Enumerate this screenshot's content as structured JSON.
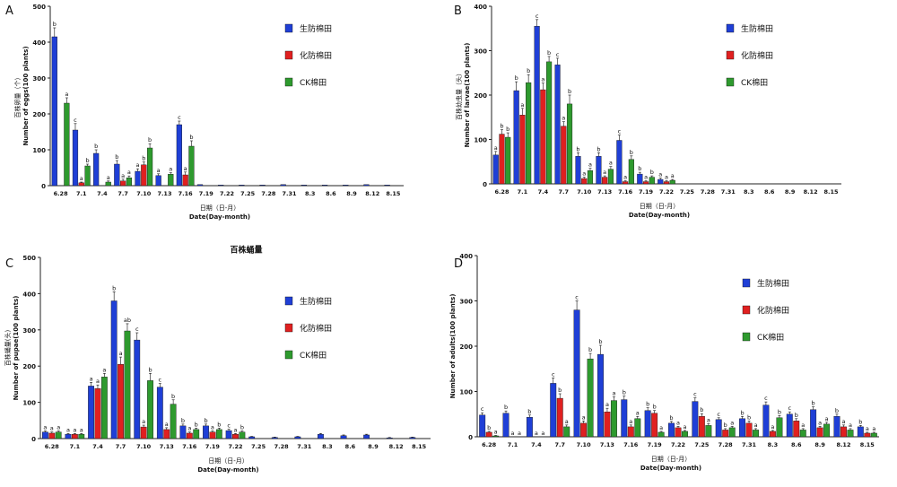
{
  "figure": {
    "legend_names": [
      "生防棉田",
      "化防棉田",
      "CK棉田"
    ],
    "colors": [
      "#1f3fd6",
      "#e02020",
      "#2e9a2e"
    ],
    "x_categories": [
      "6.28",
      "7.1",
      "7.4",
      "7.7",
      "7.10",
      "7.13",
      "7.16",
      "7.19",
      "7.22",
      "7.25",
      "7.28",
      "7.31",
      "8.3",
      "8.6",
      "8.9",
      "8.12",
      "8.15"
    ],
    "xlabel_cn": "日期（日-月）",
    "xlabel_en": "Date(Day-month)"
  },
  "chart_data": [
    {
      "panel": "A",
      "type": "bar",
      "title": "",
      "ylabel_cn": "百株卵量（个）",
      "ylabel_en": "Number of eggs(100 plants)",
      "ylim": [
        0,
        500
      ],
      "yticks": [
        0,
        100,
        200,
        300,
        400,
        500
      ],
      "categories": [
        "6.28",
        "7.1",
        "7.4",
        "7.7",
        "7.10",
        "7.13",
        "7.16",
        "7.19",
        "7.22",
        "7.25",
        "7.28",
        "7.31",
        "8.3",
        "8.6",
        "8.9",
        "8.12",
        "8.15"
      ],
      "series": [
        {
          "name": "生防棉田",
          "values": [
            415,
            155,
            90,
            60,
            40,
            28,
            170,
            3,
            2,
            2,
            2,
            3,
            2,
            2,
            2,
            3,
            2
          ],
          "errors": [
            25,
            18,
            10,
            10,
            7,
            5,
            10,
            0,
            0,
            0,
            0,
            0,
            0,
            0,
            0,
            0,
            0
          ],
          "letters": [
            "b",
            "c",
            "b",
            "b",
            "a",
            "a",
            "c",
            "",
            "",
            "",
            "",
            "",
            "",
            "",
            "",
            "",
            ""
          ]
        },
        {
          "name": "化防棉田",
          "values": [
            0,
            8,
            0,
            13,
            58,
            0,
            30,
            0,
            0,
            0,
            0,
            0,
            0,
            0,
            0,
            0,
            0
          ],
          "errors": [
            0,
            2,
            0,
            5,
            8,
            0,
            8,
            0,
            0,
            0,
            0,
            0,
            0,
            0,
            0,
            0,
            0
          ],
          "letters": [
            "",
            "a",
            "",
            "a",
            "b",
            "",
            "a",
            "",
            "",
            "",
            "",
            "",
            "",
            "",
            "",
            "",
            ""
          ]
        },
        {
          "name": "CK棉田",
          "values": [
            230,
            55,
            10,
            22,
            105,
            32,
            110,
            0,
            0,
            0,
            0,
            0,
            0,
            0,
            0,
            0,
            0
          ],
          "errors": [
            15,
            5,
            3,
            5,
            12,
            4,
            15,
            0,
            0,
            0,
            0,
            0,
            0,
            0,
            0,
            0,
            0
          ],
          "letters": [
            "a",
            "b",
            "a",
            "a",
            "b",
            "a",
            "b",
            "",
            "",
            "",
            "",
            "",
            "",
            "",
            "",
            "",
            ""
          ]
        }
      ]
    },
    {
      "panel": "B",
      "type": "bar",
      "title": "",
      "ylabel_cn": "百株幼虫量（头）",
      "ylabel_en": "Number of larvae(100 plants)",
      "ylim": [
        0,
        400
      ],
      "yticks": [
        0,
        100,
        200,
        300,
        400
      ],
      "categories": [
        "6.28",
        "7.1",
        "7.4",
        "7.7",
        "7.10",
        "7.13",
        "7.16",
        "7.19",
        "7.22",
        "7.25",
        "7.28",
        "7.31",
        "8.3",
        "8.6",
        "8.9",
        "8.12",
        "8.15"
      ],
      "series": [
        {
          "name": "生防棉田",
          "values": [
            65,
            210,
            355,
            268,
            62,
            62,
            98,
            22,
            10,
            0,
            0,
            0,
            0,
            0,
            0,
            0,
            0
          ],
          "errors": [
            8,
            20,
            15,
            15,
            8,
            8,
            12,
            4,
            3,
            0,
            0,
            0,
            0,
            0,
            0,
            0,
            0
          ],
          "letters": [
            "a",
            "b",
            "c",
            "c",
            "b",
            "b",
            "c",
            "b",
            "a",
            "",
            "",
            "",
            "",
            "",
            "",
            "",
            ""
          ]
        },
        {
          "name": "化防棉田",
          "values": [
            112,
            155,
            212,
            130,
            12,
            15,
            5,
            5,
            5,
            0,
            0,
            0,
            0,
            0,
            0,
            0,
            0
          ],
          "errors": [
            10,
            15,
            15,
            10,
            3,
            3,
            2,
            2,
            2,
            0,
            0,
            0,
            0,
            0,
            0,
            0,
            0
          ],
          "letters": [
            "b",
            "a",
            "a",
            "a",
            "a",
            "a",
            "a",
            "a",
            "a",
            "",
            "",
            "",
            "",
            "",
            "",
            "",
            ""
          ]
        },
        {
          "name": "CK棉田",
          "values": [
            105,
            228,
            275,
            180,
            30,
            33,
            55,
            15,
            8,
            0,
            0,
            0,
            0,
            0,
            0,
            0,
            0
          ],
          "errors": [
            10,
            18,
            12,
            20,
            5,
            6,
            8,
            3,
            2,
            0,
            0,
            0,
            0,
            0,
            0,
            0,
            0
          ],
          "letters": [
            "b",
            "b",
            "b",
            "b",
            "a",
            "a",
            "b",
            "b",
            "a",
            "",
            "",
            "",
            "",
            "",
            "",
            "",
            ""
          ]
        }
      ]
    },
    {
      "panel": "C",
      "type": "bar",
      "title": "百株蛹量",
      "ylabel_cn": "百株蛹量(头)",
      "ylabel_en": "Number of pupae(100 plants)",
      "ylim": [
        0,
        500
      ],
      "yticks": [
        0,
        100,
        200,
        300,
        400,
        500
      ],
      "categories": [
        "6.28",
        "7.1",
        "7.4",
        "7.7",
        "7.10",
        "7.13",
        "7.16",
        "7.19",
        "7.22",
        "7.25",
        "7.28",
        "7.31",
        "8.3",
        "8.6",
        "8.9",
        "8.12",
        "8.15"
      ],
      "series": [
        {
          "name": "生防棉田",
          "values": [
            18,
            12,
            145,
            380,
            272,
            142,
            35,
            35,
            22,
            5,
            3,
            5,
            12,
            8,
            10,
            2,
            3
          ],
          "errors": [
            3,
            2,
            10,
            25,
            20,
            10,
            5,
            5,
            4,
            1,
            1,
            1,
            2,
            2,
            2,
            1,
            1
          ],
          "letters": [
            "a",
            "a",
            "a",
            "b",
            "c",
            "c",
            "b",
            "b",
            "c",
            "",
            "",
            "",
            "",
            "",
            "",
            "",
            ""
          ]
        },
        {
          "name": "化防棉田",
          "values": [
            15,
            12,
            138,
            205,
            32,
            25,
            15,
            18,
            12,
            0,
            0,
            0,
            0,
            0,
            0,
            0,
            0
          ],
          "errors": [
            3,
            2,
            10,
            20,
            5,
            5,
            3,
            3,
            2,
            0,
            0,
            0,
            0,
            0,
            0,
            0,
            0
          ],
          "letters": [
            "a",
            "a",
            "a",
            "a",
            "a",
            "a",
            "a",
            "a",
            "a",
            "",
            "",
            "",
            "",
            "",
            "",
            "",
            ""
          ]
        },
        {
          "name": "CK棉田",
          "values": [
            18,
            12,
            170,
            297,
            160,
            95,
            25,
            25,
            18,
            0,
            0,
            0,
            0,
            0,
            0,
            0,
            0
          ],
          "errors": [
            3,
            2,
            10,
            20,
            20,
            12,
            4,
            4,
            3,
            0,
            0,
            0,
            0,
            0,
            0,
            0,
            0
          ],
          "letters": [
            "a",
            "a",
            "a",
            "ab",
            "b",
            "b",
            "b",
            "b",
            "b",
            "",
            "",
            "",
            "",
            "",
            "",
            "",
            ""
          ]
        }
      ]
    },
    {
      "panel": "D",
      "type": "bar",
      "title": "",
      "ylabel_cn": "百株成虫量（头）",
      "ylabel_en": "Number of adults(100 plants)",
      "ylim": [
        0,
        400
      ],
      "yticks": [
        0,
        100,
        200,
        300,
        400
      ],
      "categories": [
        "6.28",
        "7.1",
        "7.4",
        "7.7",
        "7.10",
        "7.13",
        "7.16",
        "7.19",
        "7.22",
        "7.25",
        "7.28",
        "7.31",
        "8.3",
        "8.6",
        "8.9",
        "8.12",
        "8.15"
      ],
      "series": [
        {
          "name": "生防棉田",
          "values": [
            48,
            52,
            43,
            118,
            280,
            182,
            82,
            58,
            30,
            78,
            38,
            40,
            70,
            50,
            60,
            45,
            22
          ],
          "errors": [
            5,
            5,
            5,
            12,
            20,
            20,
            8,
            6,
            4,
            8,
            4,
            5,
            7,
            5,
            6,
            5,
            3
          ],
          "letters": [
            "c",
            "b",
            "b",
            "c",
            "c",
            "b",
            "b",
            "b",
            "b",
            "c",
            "c",
            "b",
            "c",
            "c",
            "b",
            "b",
            "b"
          ]
        },
        {
          "name": "化防棉田",
          "values": [
            10,
            0,
            0,
            85,
            30,
            55,
            22,
            52,
            20,
            45,
            15,
            30,
            12,
            35,
            20,
            22,
            8
          ],
          "errors": [
            2,
            0,
            0,
            10,
            5,
            8,
            4,
            6,
            3,
            6,
            3,
            5,
            2,
            5,
            3,
            4,
            2
          ],
          "letters": [
            "b",
            "a",
            "a",
            "b",
            "a",
            "a",
            "a",
            "b",
            "a",
            "b",
            "b",
            "b",
            "a",
            "b",
            "a",
            "a",
            "a"
          ]
        },
        {
          "name": "CK棉田",
          "values": [
            2,
            0,
            0,
            22,
            172,
            80,
            40,
            10,
            12,
            25,
            20,
            15,
            42,
            15,
            28,
            15,
            8
          ],
          "errors": [
            1,
            0,
            0,
            4,
            12,
            8,
            5,
            2,
            2,
            4,
            3,
            3,
            5,
            3,
            4,
            3,
            2
          ],
          "letters": [
            "a",
            "a",
            "a",
            "a",
            "b",
            "a",
            "a",
            "a",
            "a",
            "a",
            "a",
            "a",
            "b",
            "a",
            "a",
            "a",
            "a"
          ]
        }
      ]
    }
  ],
  "panel_letters": [
    "A",
    "B",
    "C",
    "D"
  ],
  "titles": {
    "C": "百株蛹量"
  }
}
